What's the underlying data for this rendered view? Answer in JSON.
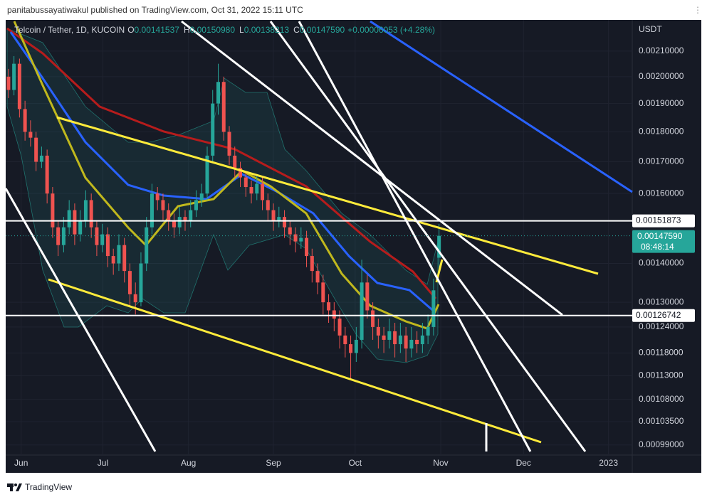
{
  "header": "panitabussayatiwakul published on TradingView.com, Oct 31, 2022 15:11 UTC",
  "footer": "TradingView",
  "chart_data": {
    "type": "candlestick",
    "symbol": "Telcoin / Tether, 1D, KUCOIN",
    "legend": [
      {
        "key": "O",
        "value": "0.00141537"
      },
      {
        "key": "H",
        "value": "0.00150980"
      },
      {
        "key": "L",
        "value": "0.00138213"
      },
      {
        "key": "C",
        "value": "0.00147590"
      }
    ],
    "change": "+0.00006053 (+4.28%)",
    "currency": "USDT",
    "log_scale": true,
    "ylim": [
      0.000971,
      0.002229
    ],
    "yticks": [
      {
        "value": 0.0021,
        "label": "0.00210000"
      },
      {
        "value": 0.002,
        "label": "0.00200000"
      },
      {
        "value": 0.0019,
        "label": "0.00190000"
      },
      {
        "value": 0.0018,
        "label": "0.00180000"
      },
      {
        "value": 0.0017,
        "label": "0.00170000"
      },
      {
        "value": 0.0016,
        "label": "0.00160000"
      },
      {
        "value": 0.0014,
        "label": "0.00140000"
      },
      {
        "value": 0.0013,
        "label": "0.00130000"
      },
      {
        "value": 0.00124,
        "label": "0.00124000"
      },
      {
        "value": 0.00118,
        "label": "0.00118000"
      },
      {
        "value": 0.00113,
        "label": "0.00113000"
      },
      {
        "value": 0.00108,
        "label": "0.00108000"
      },
      {
        "value": 0.001035,
        "label": "0.00103500"
      },
      {
        "value": 0.00099,
        "label": "0.00099000"
      }
    ],
    "xlim": [
      -0.5,
      113
    ],
    "xticks": [
      {
        "value": 2.3,
        "label": "Jun"
      },
      {
        "value": 17.1,
        "label": "Jul"
      },
      {
        "value": 32.6,
        "label": "Aug"
      },
      {
        "value": 48,
        "label": "Sep"
      },
      {
        "value": 62.8,
        "label": "Oct"
      },
      {
        "value": 78.3,
        "label": "Nov"
      },
      {
        "value": 93.3,
        "label": "Dec"
      },
      {
        "value": 108.7,
        "label": "2023"
      }
    ],
    "up_color": "#26a69a",
    "down_color": "#ef5350",
    "ohlc": [
      [
        0.002,
        0.00203,
        0.00192,
        0.00195
      ],
      [
        0.00195,
        0.00208,
        0.00193,
        0.00205
      ],
      [
        0.00205,
        0.00207,
        0.00185,
        0.00188
      ],
      [
        0.00188,
        0.00191,
        0.00177,
        0.0018
      ],
      [
        0.0018,
        0.00184,
        0.00175,
        0.00178
      ],
      [
        0.00178,
        0.0018,
        0.00167,
        0.0017
      ],
      [
        0.0017,
        0.00175,
        0.00168,
        0.00172
      ],
      [
        0.00172,
        0.00174,
        0.00157,
        0.0016
      ],
      [
        0.0016,
        0.00162,
        0.00147,
        0.0015
      ],
      [
        0.0015,
        0.00152,
        0.00142,
        0.00145
      ],
      [
        0.00145,
        0.00153,
        0.00143,
        0.0015
      ],
      [
        0.0015,
        0.00158,
        0.00148,
        0.00155
      ],
      [
        0.00155,
        0.00157,
        0.00145,
        0.00148
      ],
      [
        0.00148,
        0.00155,
        0.00146,
        0.00152
      ],
      [
        0.00152,
        0.00161,
        0.0015,
        0.00158
      ],
      [
        0.00158,
        0.0016,
        0.00147,
        0.0015
      ],
      [
        0.0015,
        0.00152,
        0.00142,
        0.00145
      ],
      [
        0.00145,
        0.00151,
        0.00143,
        0.00148
      ],
      [
        0.00148,
        0.0015,
        0.00139,
        0.00142
      ],
      [
        0.00142,
        0.00144,
        0.00137,
        0.0014
      ],
      [
        0.0014,
        0.00148,
        0.00138,
        0.00145
      ],
      [
        0.00145,
        0.00147,
        0.00135,
        0.00138
      ],
      [
        0.00138,
        0.0014,
        0.00129,
        0.00132
      ],
      [
        0.00132,
        0.00135,
        0.00127,
        0.0013
      ],
      [
        0.0013,
        0.00143,
        0.00129,
        0.0014
      ],
      [
        0.0014,
        0.00153,
        0.00138,
        0.0015
      ],
      [
        0.0015,
        0.00163,
        0.00148,
        0.0016
      ],
      [
        0.0016,
        0.00162,
        0.00155,
        0.00158
      ],
      [
        0.00158,
        0.0016,
        0.00152,
        0.00155
      ],
      [
        0.00155,
        0.00157,
        0.00149,
        0.00152
      ],
      [
        0.00152,
        0.00154,
        0.00147,
        0.0015
      ],
      [
        0.0015,
        0.00156,
        0.00148,
        0.00153
      ],
      [
        0.00153,
        0.00155,
        0.00149,
        0.00152
      ],
      [
        0.00152,
        0.00158,
        0.0015,
        0.00155
      ],
      [
        0.00155,
        0.00161,
        0.00153,
        0.00158
      ],
      [
        0.00158,
        0.00163,
        0.00156,
        0.0016
      ],
      [
        0.0016,
        0.00175,
        0.00158,
        0.00172
      ],
      [
        0.00172,
        0.00195,
        0.0017,
        0.0019
      ],
      [
        0.0019,
        0.00205,
        0.00186,
        0.00198
      ],
      [
        0.00198,
        0.002,
        0.00177,
        0.0018
      ],
      [
        0.0018,
        0.00182,
        0.00169,
        0.00172
      ],
      [
        0.00172,
        0.00175,
        0.00165,
        0.00168
      ],
      [
        0.00168,
        0.0017,
        0.00162,
        0.00165
      ],
      [
        0.00165,
        0.00167,
        0.00159,
        0.00162
      ],
      [
        0.00162,
        0.00164,
        0.00157,
        0.0016
      ],
      [
        0.0016,
        0.00166,
        0.00158,
        0.00163
      ],
      [
        0.00163,
        0.00165,
        0.00155,
        0.00158
      ],
      [
        0.00158,
        0.0016,
        0.00152,
        0.00155
      ],
      [
        0.00155,
        0.00157,
        0.00149,
        0.00152
      ],
      [
        0.00152,
        0.00156,
        0.0015,
        0.00153
      ],
      [
        0.00153,
        0.00155,
        0.00147,
        0.0015
      ],
      [
        0.0015,
        0.00152,
        0.00145,
        0.00148
      ],
      [
        0.00148,
        0.0015,
        0.00143,
        0.00146
      ],
      [
        0.00146,
        0.0015,
        0.00144,
        0.00147
      ],
      [
        0.00147,
        0.00149,
        0.00139,
        0.00142
      ],
      [
        0.00142,
        0.00144,
        0.00135,
        0.00138
      ],
      [
        0.00138,
        0.0014,
        0.00132,
        0.00135
      ],
      [
        0.00135,
        0.00137,
        0.00127,
        0.0013
      ],
      [
        0.0013,
        0.00132,
        0.00125,
        0.00128
      ],
      [
        0.00128,
        0.0013,
        0.00123,
        0.00126
      ],
      [
        0.00126,
        0.00128,
        0.00119,
        0.00122
      ],
      [
        0.00122,
        0.00124,
        0.00117,
        0.0012
      ],
      [
        0.0012,
        0.00122,
        0.00112,
        0.00118
      ],
      [
        0.00118,
        0.00124,
        0.00116,
        0.00121
      ],
      [
        0.00121,
        0.00141,
        0.00119,
        0.00135
      ],
      [
        0.00135,
        0.00137,
        0.00126,
        0.00128
      ],
      [
        0.00128,
        0.0013,
        0.00121,
        0.00124
      ],
      [
        0.00124,
        0.00126,
        0.00119,
        0.00122
      ],
      [
        0.00122,
        0.00124,
        0.00118,
        0.00121
      ],
      [
        0.00121,
        0.00126,
        0.00119,
        0.00123
      ],
      [
        0.00123,
        0.00125,
        0.00117,
        0.0012
      ],
      [
        0.0012,
        0.00125,
        0.00118,
        0.00122
      ],
      [
        0.00122,
        0.00124,
        0.00116,
        0.00119
      ],
      [
        0.00119,
        0.00124,
        0.00117,
        0.00121
      ],
      [
        0.00121,
        0.00123,
        0.00118,
        0.0012
      ],
      [
        0.0012,
        0.00125,
        0.00118,
        0.00122
      ],
      [
        0.00122,
        0.00127,
        0.0012,
        0.00124
      ],
      [
        0.00124,
        0.00136,
        0.00122,
        0.00133
      ],
      [
        0.00141537,
        0.0015098,
        0.00138213,
        0.0014759
      ]
    ],
    "price_lines": [
      {
        "value": 0.00151873,
        "label": "0.00151873"
      },
      {
        "value": 0.00126742,
        "label": "0.00126742"
      }
    ],
    "last_price": {
      "value": 0.0014759,
      "label": "0.00147590",
      "countdown": "08:48:14"
    }
  }
}
